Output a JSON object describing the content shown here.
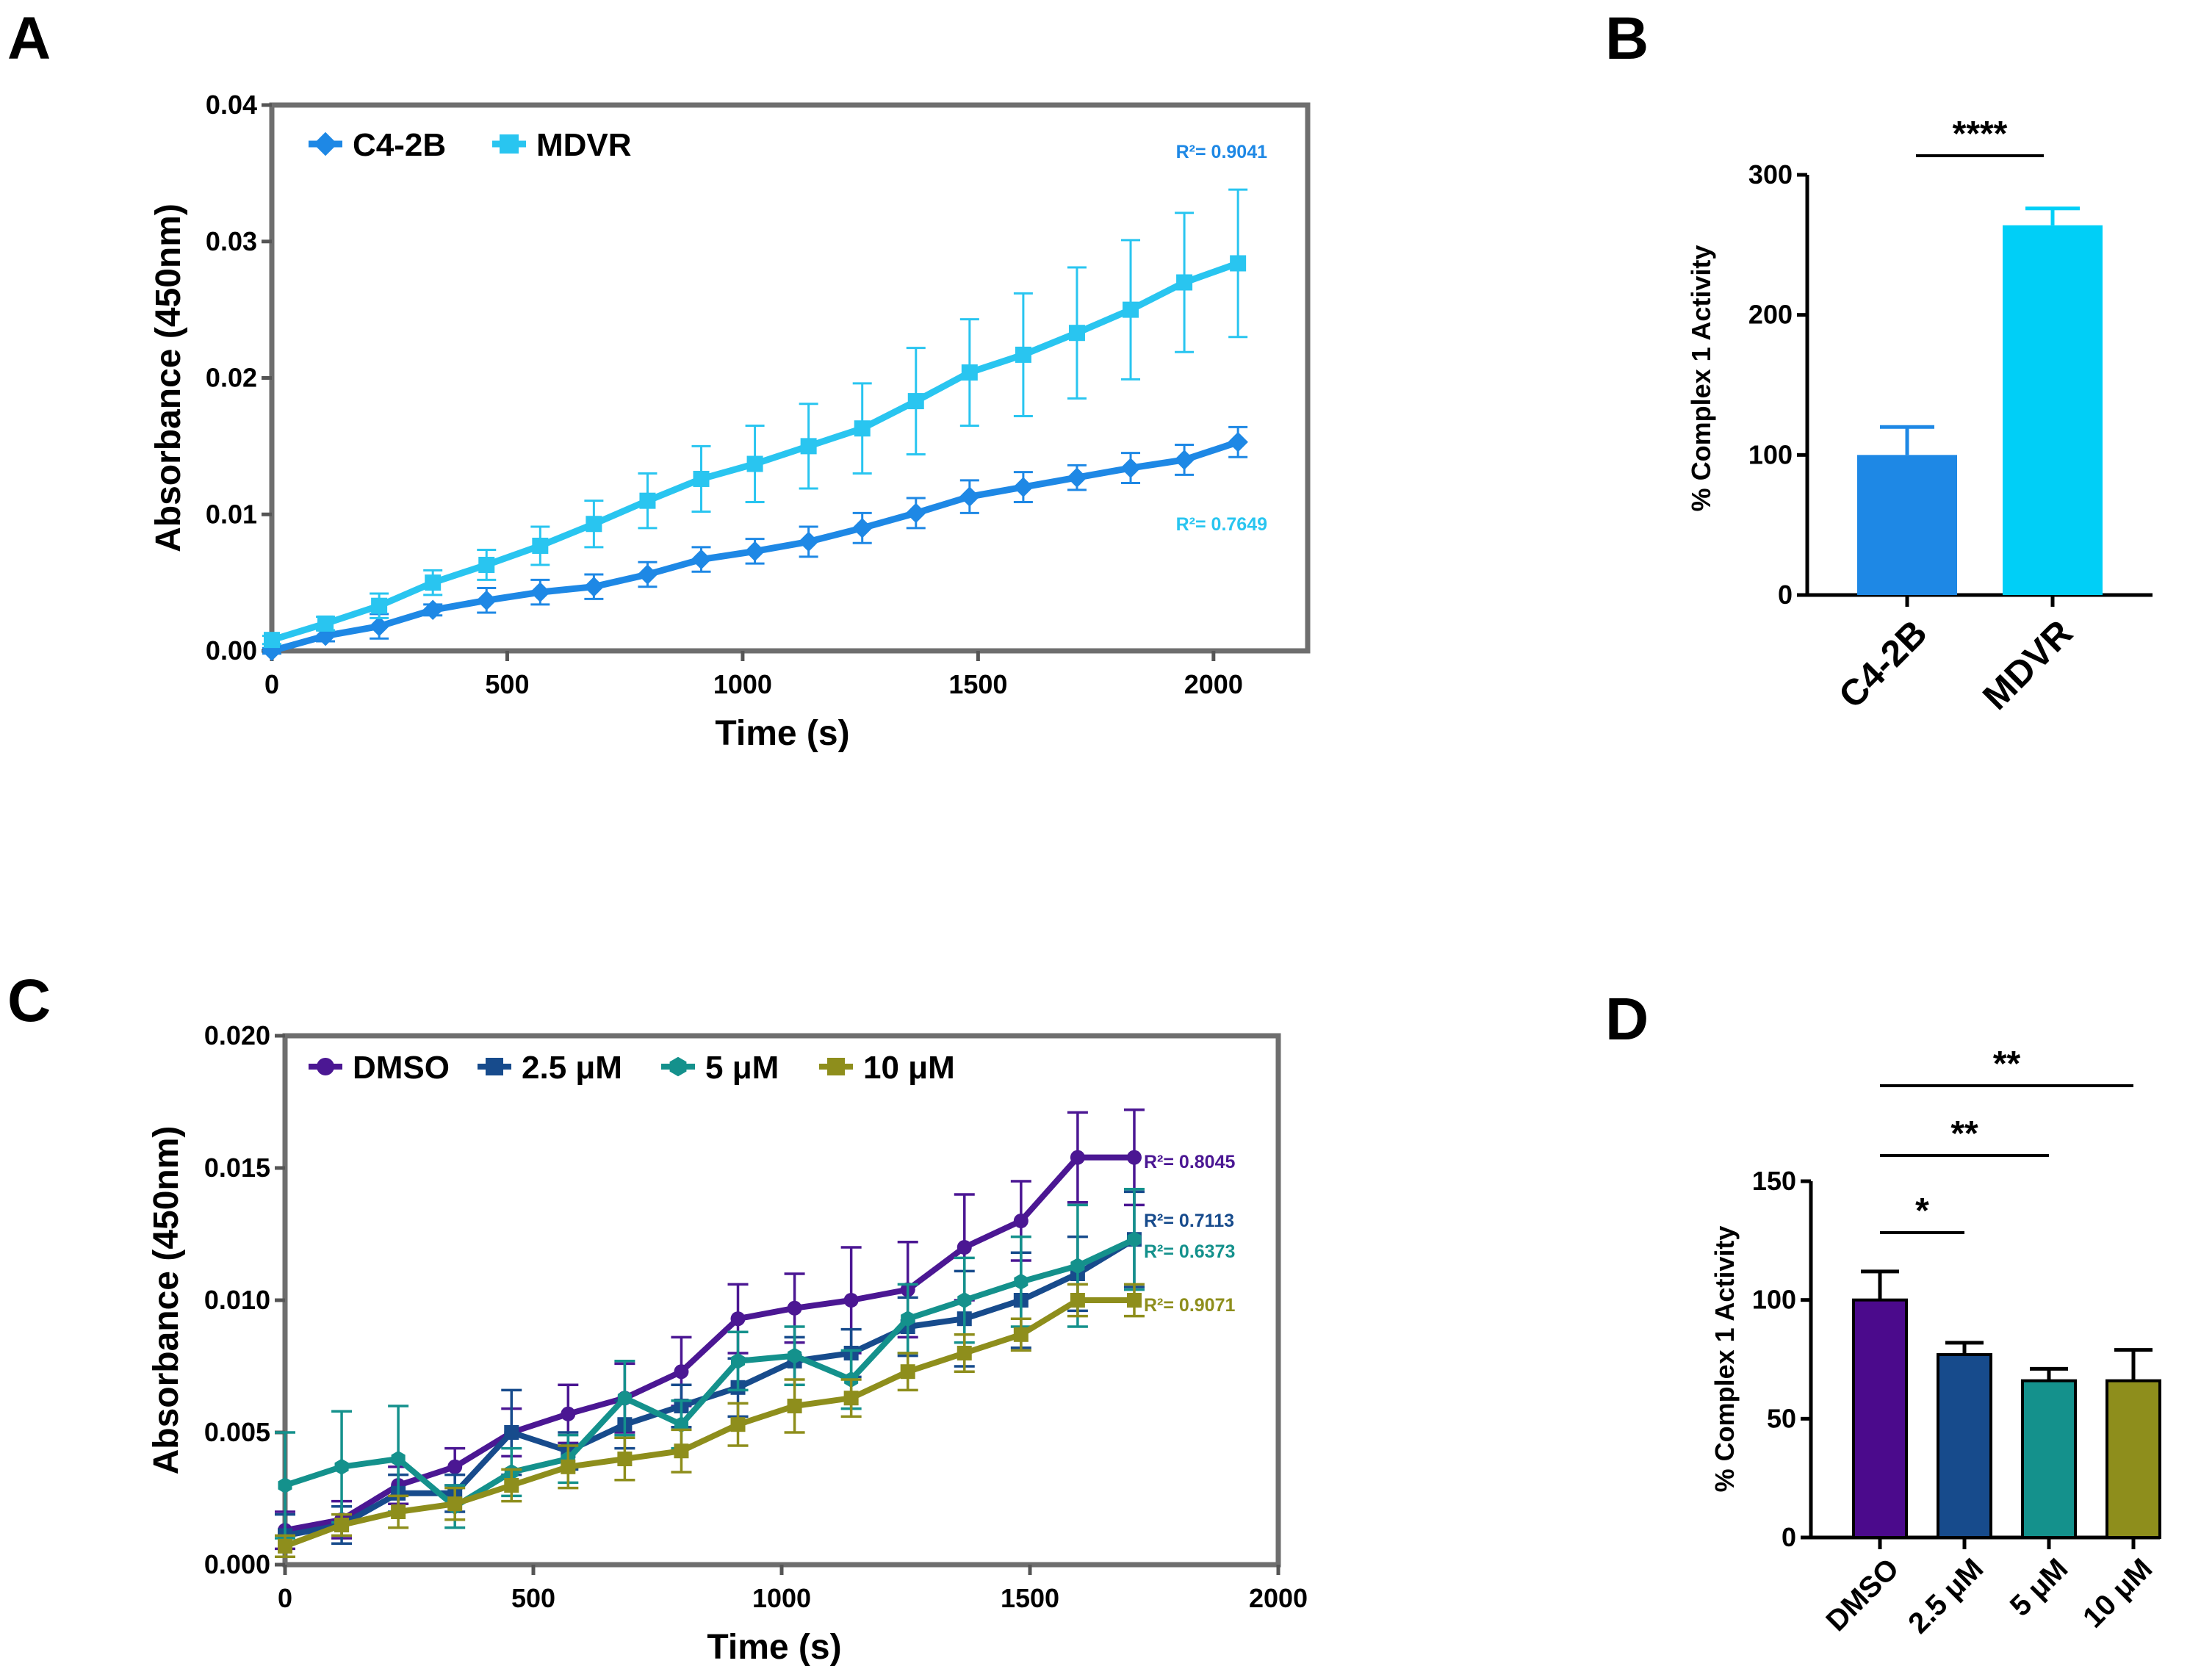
{
  "chart_data": [
    {
      "panel": "A",
      "type": "line",
      "xlabel": "Time (s)",
      "ylabel": "Absorbance (450nm)",
      "xlim": [
        0,
        2200
      ],
      "ylim": [
        0,
        0.04
      ],
      "xticks": [
        "0",
        "500",
        "1000",
        "1500",
        "2000"
      ],
      "yticks": [
        "0.00",
        "0.01",
        "0.02",
        "0.03",
        "0.04"
      ],
      "x": [
        0,
        114,
        228,
        342,
        456,
        570,
        684,
        798,
        912,
        1026,
        1140,
        1254,
        1368,
        1482,
        1596,
        1710,
        1824,
        1938,
        2052
      ],
      "series": [
        {
          "name": "C4-2B",
          "color": "#1E88E5",
          "marker": "diamond",
          "values": [
            0.0,
            0.0011,
            0.0018,
            0.003,
            0.0037,
            0.0043,
            0.0047,
            0.0056,
            0.0067,
            0.0073,
            0.008,
            0.009,
            0.0101,
            0.0113,
            0.012,
            0.0127,
            0.0134,
            0.014,
            0.0153
          ],
          "errors": [
            0.0002,
            0.0004,
            0.0009,
            0.0004,
            0.0009,
            0.0009,
            0.0009,
            0.0009,
            0.0009,
            0.0009,
            0.0011,
            0.0011,
            0.0011,
            0.0012,
            0.0011,
            0.0009,
            0.0011,
            0.0011,
            0.0011
          ],
          "r2": "R²= 0.9041"
        },
        {
          "name": "MDVR",
          "color": "#29C5F0",
          "marker": "square",
          "values": [
            0.0008,
            0.002,
            0.0033,
            0.005,
            0.0063,
            0.0077,
            0.0093,
            0.011,
            0.0126,
            0.0137,
            0.015,
            0.0163,
            0.0183,
            0.0204,
            0.0217,
            0.0233,
            0.025,
            0.027,
            0.0284
          ],
          "errors": [
            0.0003,
            0.0005,
            0.0009,
            0.0009,
            0.0011,
            0.0014,
            0.0017,
            0.002,
            0.0024,
            0.0028,
            0.0031,
            0.0033,
            0.0039,
            0.0039,
            0.0045,
            0.0048,
            0.0051,
            0.0051,
            0.0054
          ],
          "r2": "R²= 0.7649"
        }
      ]
    },
    {
      "panel": "B",
      "type": "bar",
      "ylabel": "% Complex 1 Activity",
      "ylim": [
        0,
        300
      ],
      "yticks": [
        "0",
        "100",
        "200",
        "300"
      ],
      "categories": [
        "C4-2B",
        "MDVR"
      ],
      "values": [
        100,
        264
      ],
      "errors": [
        20,
        12
      ],
      "colors": [
        "#1E88E5",
        "#00CFF7"
      ],
      "significance": [
        {
          "from": 0,
          "to": 1,
          "label": "****"
        }
      ]
    },
    {
      "panel": "C",
      "type": "line",
      "xlabel": "Time (s)",
      "ylabel": "Absorbance (450nm)",
      "xlim": [
        0,
        2000
      ],
      "ylim": [
        0,
        0.02
      ],
      "xticks": [
        "0",
        "500",
        "1000",
        "1500",
        "2000"
      ],
      "yticks": [
        "0.000",
        "0.005",
        "0.010",
        "0.015",
        "0.020"
      ],
      "x": [
        0,
        114,
        228,
        342,
        456,
        570,
        684,
        798,
        912,
        1026,
        1140,
        1254,
        1368,
        1482,
        1596,
        1710
      ],
      "series": [
        {
          "name": "DMSO",
          "color": "#4B1793",
          "marker": "circle",
          "values": [
            0.0013,
            0.0017,
            0.003,
            0.0037,
            0.005,
            0.0057,
            0.0063,
            0.0073,
            0.0093,
            0.0097,
            0.01,
            0.0104,
            0.012,
            0.013,
            0.0154,
            0.0154
          ],
          "errors": [
            0.0007,
            0.0007,
            0.0007,
            0.0007,
            0.0009,
            0.0011,
            0.0013,
            0.0013,
            0.0013,
            0.0013,
            0.002,
            0.0018,
            0.002,
            0.0015,
            0.0017,
            0.0018
          ],
          "r2": "R²= 0.8045"
        },
        {
          "name": "2.5 μM",
          "color": "#174B8C",
          "marker": "square",
          "values": [
            0.0011,
            0.0015,
            0.0027,
            0.0027,
            0.005,
            0.0043,
            0.0053,
            0.006,
            0.0067,
            0.0077,
            0.008,
            0.009,
            0.0093,
            0.01,
            0.011,
            0.0123
          ],
          "errors": [
            0.0008,
            0.0007,
            0.0007,
            0.0007,
            0.0016,
            0.0007,
            0.0009,
            0.0008,
            0.0011,
            0.0009,
            0.0009,
            0.0011,
            0.0018,
            0.0018,
            0.0014,
            0.0018
          ],
          "r2": "R²= 0.7113"
        },
        {
          "name": "5 μM",
          "color": "#14918C",
          "marker": "hexagon",
          "values": [
            0.003,
            0.0037,
            0.004,
            0.0022,
            0.0035,
            0.004,
            0.0063,
            0.0053,
            0.0077,
            0.0079,
            0.007,
            0.0093,
            0.01,
            0.0107,
            0.0113,
            0.0123
          ],
          "errors": [
            0.002,
            0.0021,
            0.002,
            0.0008,
            0.0009,
            0.0009,
            0.0014,
            0.0009,
            0.0011,
            0.0011,
            0.0011,
            0.0013,
            0.0016,
            0.0017,
            0.0023,
            0.0019
          ],
          "r2": "R²= 0.6373"
        },
        {
          "name": "10 μM",
          "color": "#8E8E1C",
          "marker": "square",
          "values": [
            0.0007,
            0.0015,
            0.002,
            0.0023,
            0.003,
            0.0037,
            0.004,
            0.0043,
            0.0053,
            0.006,
            0.0063,
            0.0073,
            0.008,
            0.0087,
            0.01,
            0.01
          ],
          "errors": [
            0.0004,
            0.0004,
            0.0006,
            0.0006,
            0.0006,
            0.0008,
            0.0008,
            0.0008,
            0.0008,
            0.001,
            0.0007,
            0.0007,
            0.0007,
            0.0006,
            0.0006,
            0.0006
          ],
          "r2": "R²= 0.9071"
        }
      ]
    },
    {
      "panel": "D",
      "type": "bar",
      "ylabel": "% Complex 1 Activity",
      "ylim": [
        0,
        150
      ],
      "yticks": [
        "0",
        "50",
        "100",
        "150"
      ],
      "categories": [
        "DMSO",
        "2.5 μM",
        "5 μM",
        "10 μM"
      ],
      "values": [
        100,
        77,
        66,
        66
      ],
      "errors": [
        12,
        5,
        5,
        13
      ],
      "colors": [
        "#4B0A8C",
        "#174B8C",
        "#14918C",
        "#8E8E1C"
      ],
      "significance": [
        {
          "from": 0,
          "to": 1,
          "label": "*"
        },
        {
          "from": 0,
          "to": 2,
          "label": "**"
        },
        {
          "from": 0,
          "to": 3,
          "label": "**"
        }
      ]
    }
  ]
}
